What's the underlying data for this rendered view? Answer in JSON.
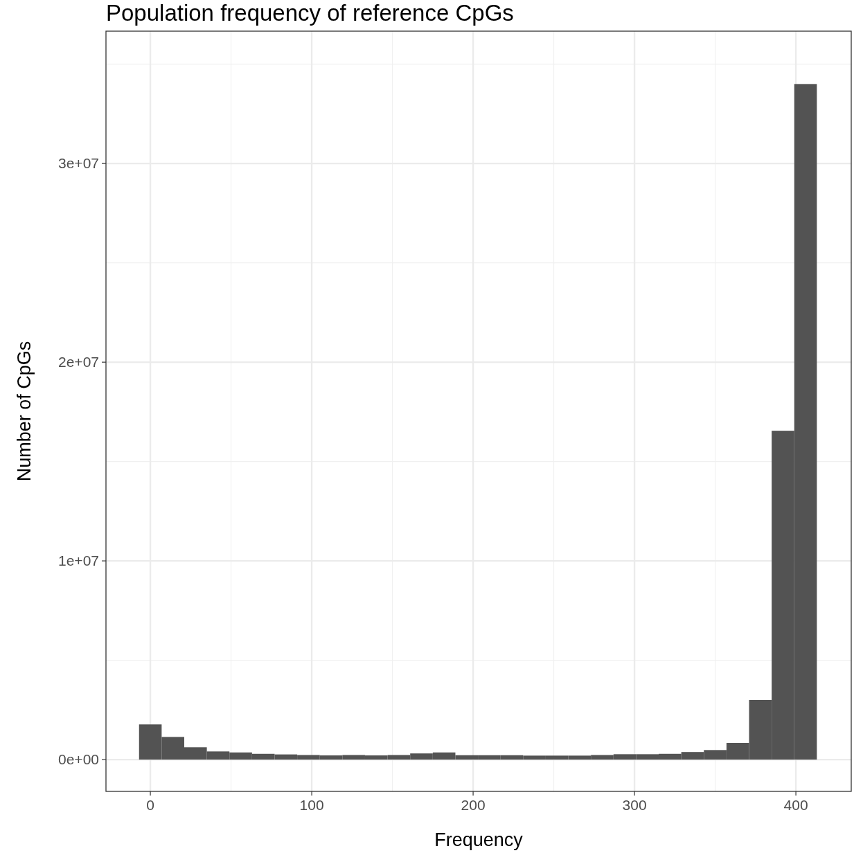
{
  "chart_data": {
    "type": "histogram",
    "title": "Population frequency of reference CpGs",
    "xlabel": "Frequency",
    "ylabel": "Number of CpGs",
    "bins": [
      -7,
      7,
      21,
      35,
      49,
      63,
      77,
      91,
      105,
      119,
      133,
      147,
      161,
      175,
      189,
      203,
      217,
      231,
      245,
      259,
      273,
      287,
      301,
      315,
      329,
      343,
      357,
      371,
      385,
      399,
      413
    ],
    "values": [
      1770000,
      1140000,
      620000,
      410000,
      360000,
      290000,
      260000,
      230000,
      210000,
      230000,
      210000,
      230000,
      310000,
      360000,
      220000,
      220000,
      220000,
      200000,
      200000,
      200000,
      230000,
      270000,
      270000,
      290000,
      380000,
      480000,
      840000,
      3000000,
      16550000,
      34000000
    ],
    "color": "#535353",
    "xlim": [
      -27.5,
      434.3
    ],
    "ylim": [
      -1600000,
      36660000
    ],
    "xticks": [
      0,
      100,
      200,
      300,
      400
    ],
    "yticks": [
      {
        "value": 0,
        "label": "0e+00"
      },
      {
        "value": 10000000,
        "label": "1e+07"
      },
      {
        "value": 20000000,
        "label": "2e+07"
      },
      {
        "value": 30000000,
        "label": "3e+07"
      }
    ],
    "grid": true
  }
}
